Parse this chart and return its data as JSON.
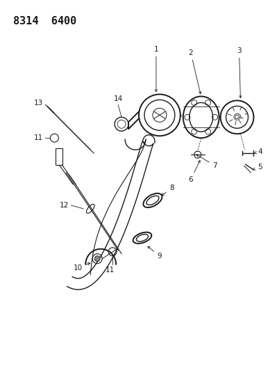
{
  "title": "8314  6400",
  "bg_color": "#ffffff",
  "line_color": "#1a1a1a",
  "label_color": "#1a1a1a",
  "title_fontsize": 11,
  "label_fontsize": 7.5,
  "figsize": [
    3.99,
    5.33
  ],
  "dpi": 100
}
